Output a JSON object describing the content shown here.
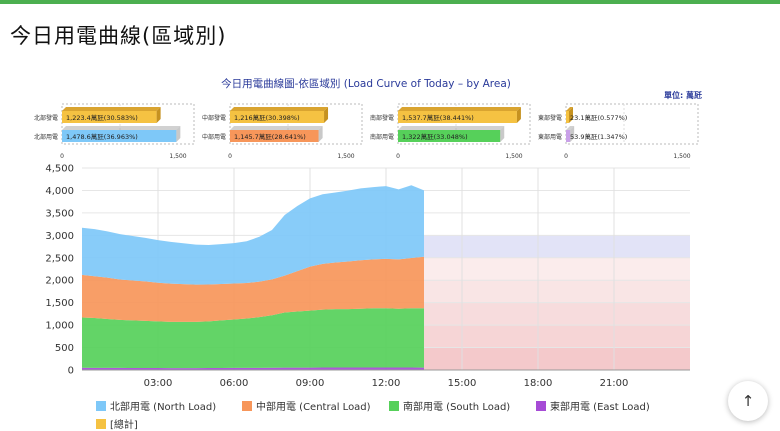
{
  "page": {
    "title": "今日用電曲線(區域別)"
  },
  "ui": {
    "scroll_top_icon": "arrow-up-icon",
    "scroll_top_glyph": "↑"
  },
  "chart_data": {
    "type": "area",
    "title": "今日用電曲線圖-依區域別 (Load Curve of Today – by Area)",
    "unit_label": "單位: 萬瓩",
    "xlabel": "",
    "ylabel": "",
    "ylim": [
      0,
      4500
    ],
    "y_ticks": [
      "0",
      "500",
      "1,000",
      "1,500",
      "2,000",
      "2,500",
      "3,000",
      "3,500",
      "4,000",
      "4,500"
    ],
    "x_ticks": [
      "03:00",
      "06:00",
      "09:00",
      "12:00",
      "15:00",
      "18:00",
      "21:00"
    ],
    "x_range_hours": [
      0,
      24
    ],
    "grid": true,
    "legend_position": "bottom",
    "x_hours": [
      0,
      0.5,
      1,
      1.5,
      2,
      2.5,
      3,
      3.5,
      4,
      4.5,
      5,
      5.5,
      6,
      6.5,
      7,
      7.5,
      8,
      8.5,
      9,
      9.5,
      10,
      10.5,
      11,
      11.5,
      12,
      12.5,
      13,
      13.5
    ],
    "series": [
      {
        "name": "東部用電 (East Load)",
        "color": "#a64bd6",
        "values": [
          50,
          48,
          47,
          46,
          45,
          44,
          44,
          43,
          43,
          43,
          44,
          45,
          46,
          47,
          48,
          50,
          52,
          53,
          54,
          55,
          55,
          56,
          55,
          55,
          56,
          55,
          55,
          54
        ]
      },
      {
        "name": "南部用電 (South Load)",
        "color": "#56d05a",
        "values": [
          1120,
          1110,
          1090,
          1070,
          1060,
          1050,
          1040,
          1030,
          1030,
          1030,
          1040,
          1060,
          1080,
          1100,
          1130,
          1170,
          1230,
          1250,
          1270,
          1290,
          1300,
          1300,
          1310,
          1320,
          1320,
          1310,
          1320,
          1322
        ]
      },
      {
        "name": "中部用電 (Central Load)",
        "color": "#f7965a",
        "values": [
          950,
          930,
          920,
          900,
          890,
          880,
          860,
          850,
          840,
          830,
          820,
          810,
          800,
          790,
          790,
          800,
          820,
          900,
          980,
          1020,
          1040,
          1060,
          1080,
          1090,
          1100,
          1100,
          1120,
          1146
        ]
      },
      {
        "name": "北部用電 (North Load)",
        "color": "#7ec8f8",
        "values": [
          1050,
          1050,
          1030,
          1010,
          990,
          970,
          950,
          930,
          910,
          890,
          880,
          890,
          900,
          930,
          1000,
          1100,
          1350,
          1450,
          1520,
          1550,
          1560,
          1580,
          1600,
          1610,
          1620,
          1560,
          1620,
          1479
        ]
      }
    ],
    "total_series": {
      "name": "[總計]",
      "color": "#f5c242"
    },
    "supply_bands": {
      "from_hour": 13.5,
      "bands": [
        {
          "from": 0,
          "to": 500,
          "color": "#f4c9cb"
        },
        {
          "from": 500,
          "to": 1000,
          "color": "#f6d5d6"
        },
        {
          "from": 1000,
          "to": 1500,
          "color": "#f7dcdd"
        },
        {
          "from": 1500,
          "to": 2000,
          "color": "#f9e5e5"
        },
        {
          "from": 2000,
          "to": 2500,
          "color": "#fbecec"
        },
        {
          "from": 2500,
          "to": 3000,
          "color": "#e2e3f7"
        }
      ]
    },
    "mini_bars": [
      {
        "gen_label": "北部發電",
        "load_label": "北部用電",
        "gen_value": 1223.4,
        "gen_text": "1,223.4萬瓩(30.583%)",
        "load_value": 1478.6,
        "load_text": "1,478.6萬瓩(36.963%)",
        "load_color": "#7ec8f8",
        "axis": [
          "0",
          "1,500"
        ],
        "max": 1500
      },
      {
        "gen_label": "中部發電",
        "load_label": "中部用電",
        "gen_value": 1216,
        "gen_text": "1,216萬瓩(30.398%)",
        "load_value": 1145.7,
        "load_text": "1,145.7萬瓩(28.641%)",
        "load_color": "#f7965a",
        "axis": [
          "0",
          "1,500"
        ],
        "max": 1500
      },
      {
        "gen_label": "南部發電",
        "load_label": "南部用電",
        "gen_value": 1537.7,
        "gen_text": "1,537.7萬瓩(38.441%)",
        "load_value": 1322,
        "load_text": "1,322萬瓩(33.048%)",
        "load_color": "#56d05a",
        "axis": [
          "0",
          "1,500"
        ],
        "max": 1500
      },
      {
        "gen_label": "東部發電",
        "load_label": "東部用電",
        "gen_value": 23.1,
        "gen_text": "23.1萬瓩(0.577%)",
        "load_value": 53.9,
        "load_text": "53.9萬瓩(1.347%)",
        "load_color": "#c9a0e8",
        "axis": [
          "0",
          "1,500"
        ],
        "max": 1500
      }
    ],
    "gen_color": "#f5c242"
  }
}
